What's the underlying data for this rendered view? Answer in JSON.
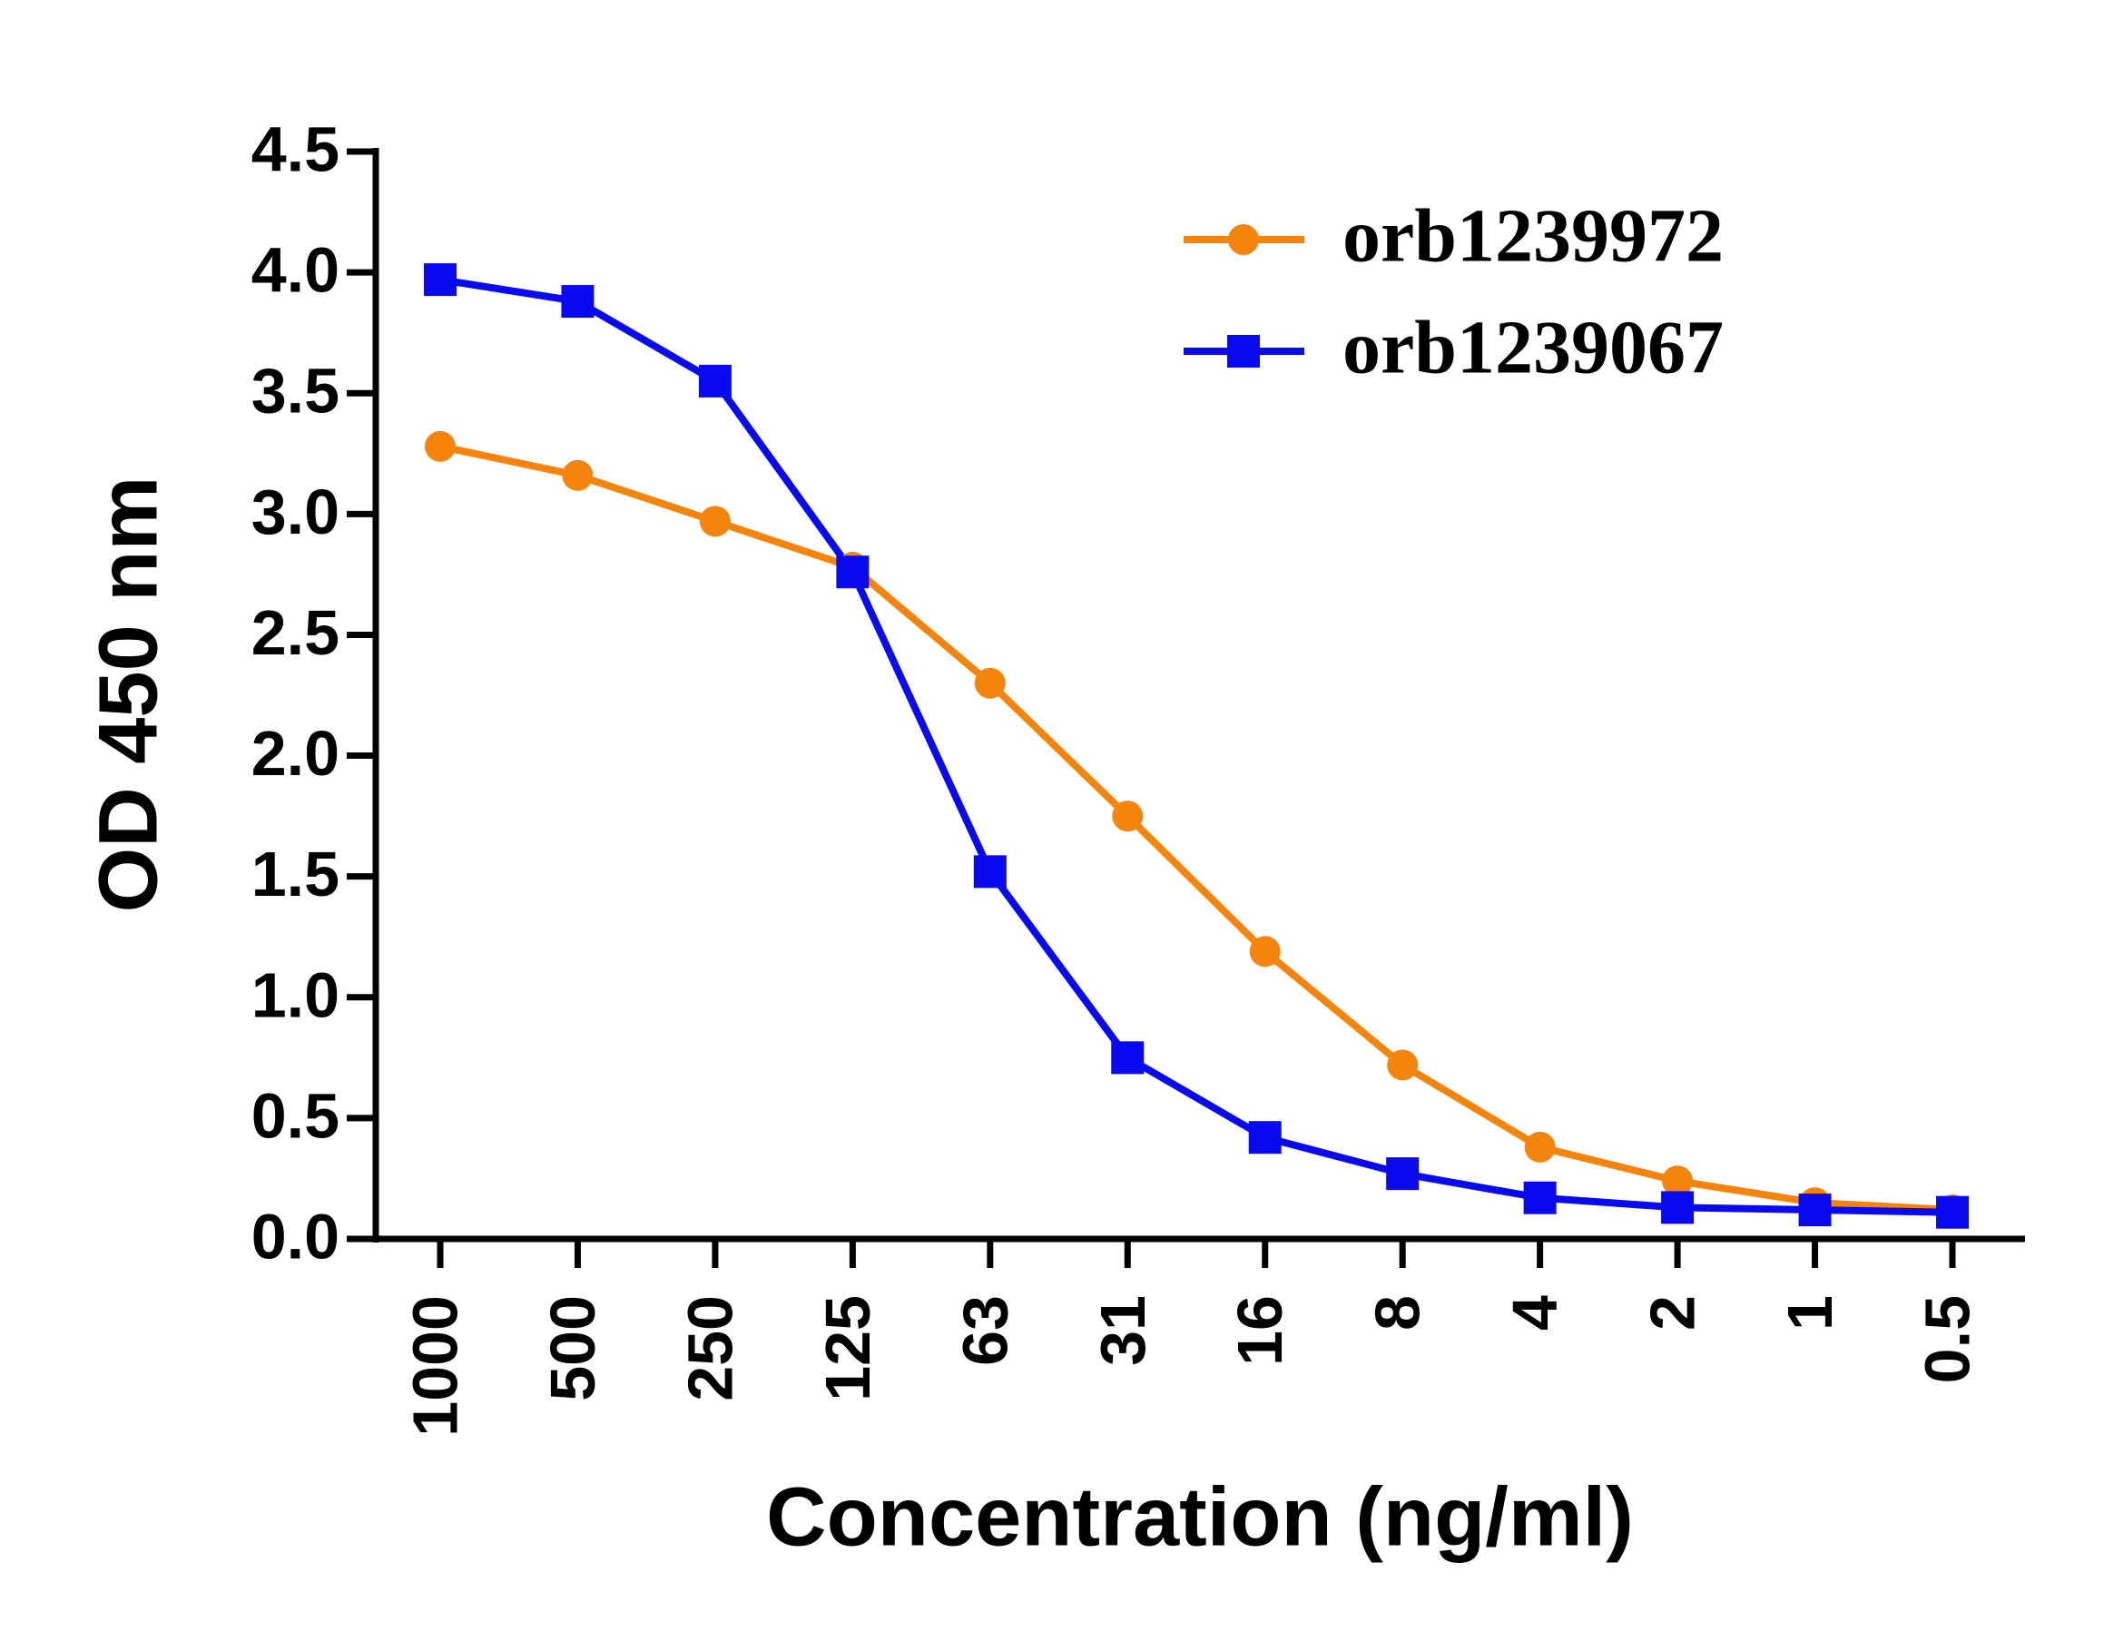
{
  "chart_data": {
    "type": "line",
    "x_label": "Concentration (ng/ml)",
    "y_label": "OD 450 nm",
    "categories": [
      "1000",
      "500",
      "250",
      "125",
      "63",
      "31",
      "16",
      "8",
      "4",
      "2",
      "1",
      "0.5"
    ],
    "series": [
      {
        "name": "orb1239972",
        "color": "#f5840c",
        "marker": "circle",
        "values": [
          3.28,
          3.16,
          2.97,
          2.78,
          2.3,
          1.75,
          1.19,
          0.72,
          0.38,
          0.24,
          0.15,
          0.12
        ]
      },
      {
        "name": "orb1239067",
        "color": "#0a0af0",
        "marker": "square",
        "values": [
          3.97,
          3.88,
          3.55,
          2.76,
          1.52,
          0.75,
          0.42,
          0.27,
          0.17,
          0.13,
          0.12,
          0.11
        ]
      }
    ],
    "ylim": [
      0,
      4.5
    ],
    "yticks": [
      {
        "value": 0,
        "label": "0.0"
      },
      0.5,
      {
        "value": 1,
        "label": "1.0"
      },
      1.5,
      {
        "value": 2,
        "label": "2.0"
      },
      2.5,
      {
        "value": 3,
        "label": "3.0"
      },
      3.5,
      {
        "value": 4,
        "label": "4.0"
      },
      4.5
    ],
    "grid": false,
    "legend": "upper right"
  }
}
